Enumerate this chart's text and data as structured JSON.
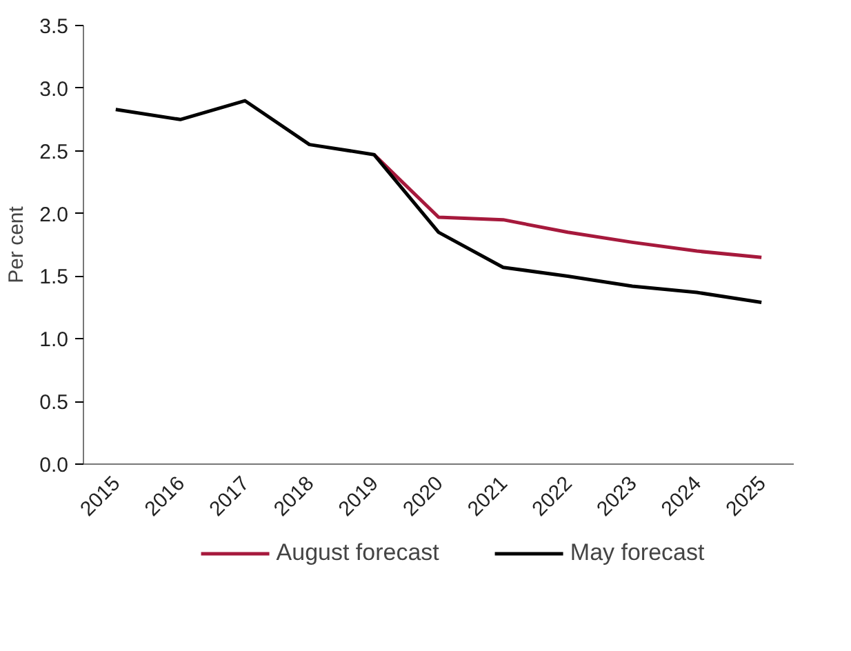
{
  "chart_data": {
    "type": "line",
    "ylabel": "Per cent",
    "categories": [
      "2015",
      "2016",
      "2017",
      "2018",
      "2019",
      "2020",
      "2021",
      "2022",
      "2023",
      "2024",
      "2025"
    ],
    "series": [
      {
        "name": "August forecast",
        "color": "#a6193c",
        "values": [
          null,
          null,
          null,
          null,
          2.47,
          1.97,
          1.95,
          1.85,
          1.77,
          1.7,
          1.65
        ]
      },
      {
        "name": "May forecast",
        "color": "#000000",
        "values": [
          2.83,
          2.75,
          2.9,
          2.55,
          2.47,
          1.85,
          1.57,
          1.5,
          1.42,
          1.37,
          1.29
        ]
      }
    ],
    "ylim": [
      0,
      3.5
    ],
    "yticks": [
      {
        "value": 0,
        "label": "0.0"
      },
      0.5,
      {
        "value": 1,
        "label": "1.0"
      },
      1.5,
      {
        "value": 2,
        "label": "2.0"
      },
      2.5,
      {
        "value": 3,
        "label": "3.0"
      },
      3.5
    ],
    "grid": false,
    "legend": "bottom",
    "marker": "none",
    "line_style": "solid"
  }
}
